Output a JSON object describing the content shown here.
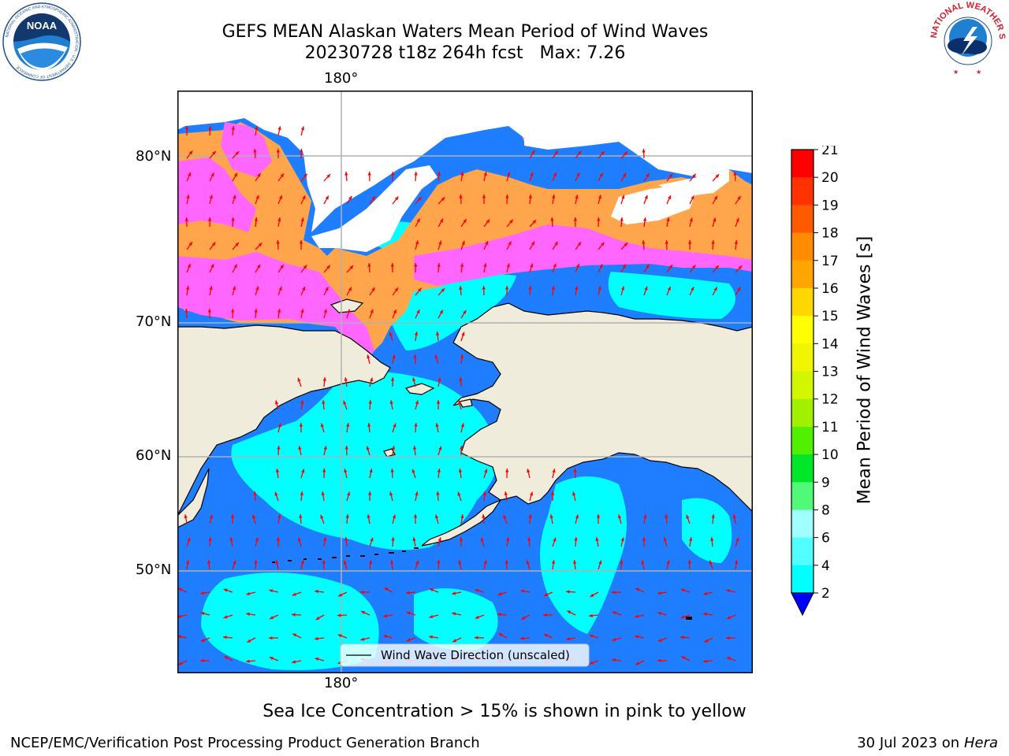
{
  "title": {
    "line1": "GEFS MEAN Alaskan Waters Mean Period of Wind Waves",
    "line2": "20230728 t18z 264h fcst   Max: 7.26"
  },
  "map": {
    "lon_labels": [
      "180°",
      "180°"
    ],
    "lat_labels": [
      "80°N",
      "70°N",
      "60°N",
      "50°N"
    ],
    "legend_label": "Wind Wave Direction (unscaled)",
    "colors": {
      "land": "#efecdc",
      "ice": "#ffa64d",
      "ice_pink": "#ff66ff",
      "wave_2_4": "#1e7eff",
      "wave_4_6": "#00ffff",
      "arrow": "#ff0000",
      "gridline": "#b0b0b0"
    }
  },
  "colorbar": {
    "title": "Mean Period of Wind Waves [s]",
    "ticks": [
      "21",
      "20",
      "19",
      "18",
      "17",
      "16",
      "15",
      "14",
      "13",
      "12",
      "11",
      "10",
      "9",
      "8",
      "6",
      "4",
      "2"
    ],
    "level_colors": [
      "#0000ff",
      "#1e7eff",
      "#00ffff",
      "#50ffff",
      "#a0ffff",
      "#50fa78",
      "#00e628",
      "#50f000",
      "#a0f000",
      "#d2f500",
      "#f0f500",
      "#ffff00",
      "#ffd700",
      "#ffa500",
      "#ff8c00",
      "#ff5a00",
      "#ff3200",
      "#ff0000"
    ]
  },
  "note": "Sea Ice Concentration > 15% is shown in pink to yellow",
  "footer": {
    "left": "NCEP/EMC/Verification Post Processing Product Generation Branch",
    "right_date": "30 Jul 2023 on",
    "right_host": "Hera"
  },
  "logos": {
    "noaa_text": "NOAA",
    "noaa_ring": "NATIONAL OCEANIC AND ATMOSPHERIC ADMINISTRATION · U.S. DEPARTMENT OF COMMERCE",
    "nws_ring": "NATIONAL WEATHER SERVICE"
  }
}
